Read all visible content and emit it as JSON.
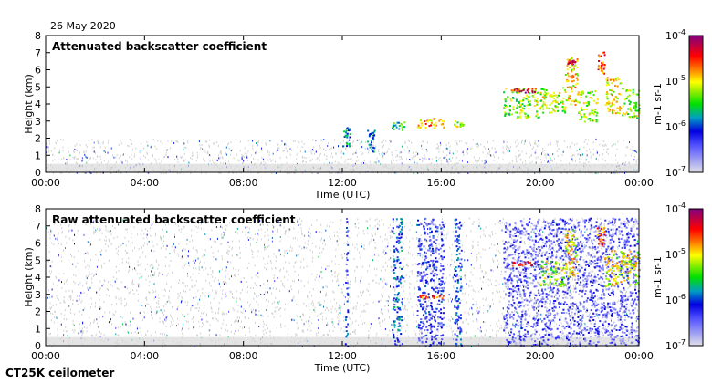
{
  "date_label": "26 May 2020",
  "footer_label": "CT25K ceilometer",
  "colors": {
    "frame": "#000000",
    "noise": "#d0d0d0"
  },
  "chart_data": [
    {
      "type": "heatmap",
      "title": "Attenuated backscatter coefficient",
      "xlabel": "Time (UTC)",
      "ylabel": "Height (km)",
      "xlim_hours": [
        0,
        24
      ],
      "ylim_km": [
        0,
        8
      ],
      "x_ticks": [
        "00:00",
        "04:00",
        "08:00",
        "12:00",
        "16:00",
        "20:00",
        "00:00"
      ],
      "y_ticks": [
        "0",
        "1",
        "2",
        "3",
        "4",
        "5",
        "6",
        "7",
        "8"
      ],
      "colorbar": {
        "scale": "log",
        "range": [
          1e-07,
          0.0001
        ],
        "ticks": [
          "10-7",
          "10-6",
          "10-5",
          "10-4"
        ],
        "label": "m-1 sr-1"
      },
      "noise_top_km": 2.0,
      "features": [
        {
          "t0": 12.0,
          "t1": 12.3,
          "h0": 1.5,
          "h1": 2.7,
          "log_value": -5.8
        },
        {
          "t0": 13.0,
          "t1": 13.3,
          "h0": 1.2,
          "h1": 2.6,
          "log_value": -5.9
        },
        {
          "t0": 14.0,
          "t1": 14.5,
          "h0": 2.5,
          "h1": 3.0,
          "log_value": -5.6
        },
        {
          "t0": 15.0,
          "t1": 16.1,
          "h0": 2.6,
          "h1": 3.2,
          "log_value": -4.8
        },
        {
          "t0": 16.5,
          "t1": 16.9,
          "h0": 2.7,
          "h1": 3.1,
          "log_value": -5.2
        },
        {
          "t0": 18.5,
          "t1": 20.0,
          "h0": 3.2,
          "h1": 5.0,
          "log_value": -5.3
        },
        {
          "t0": 18.8,
          "t1": 19.8,
          "h0": 4.7,
          "h1": 4.95,
          "log_value": -4.3
        },
        {
          "t0": 20.0,
          "t1": 21.0,
          "h0": 3.5,
          "h1": 5.0,
          "log_value": -5.2
        },
        {
          "t0": 21.0,
          "t1": 21.5,
          "h0": 4.0,
          "h1": 6.8,
          "log_value": -5.0
        },
        {
          "t0": 21.1,
          "t1": 21.4,
          "h0": 6.3,
          "h1": 6.6,
          "log_value": -4.3
        },
        {
          "t0": 21.5,
          "t1": 22.3,
          "h0": 3.0,
          "h1": 4.8,
          "log_value": -5.2
        },
        {
          "t0": 22.3,
          "t1": 22.6,
          "h0": 5.8,
          "h1": 7.2,
          "log_value": -4.6
        },
        {
          "t0": 22.6,
          "t1": 23.3,
          "h0": 3.5,
          "h1": 5.6,
          "log_value": -5.0
        },
        {
          "t0": 23.3,
          "t1": 24.0,
          "h0": 3.2,
          "h1": 5.0,
          "log_value": -5.2
        }
      ]
    },
    {
      "type": "heatmap",
      "title": "Raw attenuated backscatter coefficient",
      "xlabel": "Time (UTC)",
      "ylabel": "Height (km)",
      "xlim_hours": [
        0,
        24
      ],
      "ylim_km": [
        0,
        8
      ],
      "x_ticks": [
        "00:00",
        "04:00",
        "08:00",
        "12:00",
        "16:00",
        "20:00",
        "00:00"
      ],
      "y_ticks": [
        "0",
        "1",
        "2",
        "3",
        "4",
        "5",
        "6",
        "7",
        "8"
      ],
      "colorbar": {
        "scale": "log",
        "range": [
          1e-07,
          0.0001
        ],
        "ticks": [
          "10-7",
          "10-6",
          "10-5",
          "10-4"
        ],
        "label": "m-1 sr-1"
      },
      "noise_top_km": 7.5,
      "features": [
        {
          "t0": 12.1,
          "t1": 12.2,
          "h0": 0.0,
          "h1": 7.5,
          "log_value": -6.2
        },
        {
          "t0": 14.0,
          "t1": 14.4,
          "h0": 0.0,
          "h1": 7.5,
          "log_value": -6.0
        },
        {
          "t0": 15.0,
          "t1": 16.1,
          "h0": 0.0,
          "h1": 7.5,
          "log_value": -6.3
        },
        {
          "t0": 15.0,
          "t1": 16.1,
          "h0": 2.8,
          "h1": 3.0,
          "log_value": -4.6
        },
        {
          "t0": 16.5,
          "t1": 16.8,
          "h0": 0.0,
          "h1": 7.5,
          "log_value": -6.1
        },
        {
          "t0": 18.5,
          "t1": 24.0,
          "h0": 0.0,
          "h1": 7.5,
          "log_value": -6.5
        },
        {
          "t0": 18.8,
          "t1": 19.8,
          "h0": 4.7,
          "h1": 4.95,
          "log_value": -4.3
        },
        {
          "t0": 20.0,
          "t1": 21.0,
          "h0": 3.5,
          "h1": 5.0,
          "log_value": -5.2
        },
        {
          "t0": 21.0,
          "t1": 21.5,
          "h0": 4.0,
          "h1": 6.8,
          "log_value": -5.0
        },
        {
          "t0": 22.3,
          "t1": 22.6,
          "h0": 5.8,
          "h1": 7.0,
          "log_value": -4.6
        },
        {
          "t0": 22.6,
          "t1": 24.0,
          "h0": 3.5,
          "h1": 5.6,
          "log_value": -5.1
        }
      ]
    }
  ]
}
